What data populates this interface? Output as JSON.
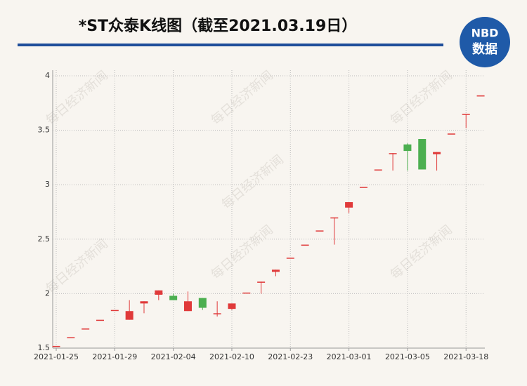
{
  "chart_data": {
    "type": "candlestick",
    "title": "*ST众泰K线图（截至2021.03.19日）",
    "logo": {
      "top": "NBD",
      "bottom": "数据"
    },
    "watermark": "每日经济新闻",
    "categories": [
      "2021-01-25",
      null,
      null,
      null,
      "2021-01-29",
      null,
      null,
      null,
      "2021-02-04",
      null,
      null,
      null,
      "2021-02-10",
      null,
      null,
      null,
      "2021-02-23",
      null,
      null,
      null,
      "2021-03-01",
      null,
      null,
      null,
      "2021-03-05",
      null,
      null,
      null,
      "2021-03-18",
      null
    ],
    "open": [
      1.52,
      1.6,
      1.68,
      1.76,
      1.85,
      1.76,
      1.91,
      1.99,
      1.98,
      1.84,
      1.96,
      1.81,
      1.86,
      2.01,
      2.1,
      2.2,
      2.33,
      2.45,
      2.58,
      2.7,
      2.79,
      2.98,
      3.14,
      3.29,
      3.37,
      3.42,
      3.28,
      3.47,
      3.65,
      3.82
    ],
    "high": [
      1.52,
      1.6,
      1.68,
      1.76,
      1.85,
      1.94,
      1.93,
      2.03,
      2.0,
      2.02,
      1.96,
      1.93,
      1.91,
      2.01,
      2.11,
      2.22,
      2.33,
      2.45,
      2.58,
      2.7,
      2.84,
      2.98,
      3.14,
      3.29,
      3.38,
      3.42,
      3.3,
      3.47,
      3.65,
      3.82
    ],
    "low": [
      1.52,
      1.6,
      1.68,
      1.76,
      1.85,
      1.76,
      1.82,
      1.94,
      1.94,
      1.84,
      1.85,
      1.79,
      1.85,
      2.01,
      2.0,
      2.16,
      2.33,
      2.45,
      2.58,
      2.45,
      2.74,
      2.98,
      3.14,
      3.13,
      3.13,
      3.14,
      3.13,
      3.47,
      3.52,
      3.82
    ],
    "close": [
      1.52,
      1.6,
      1.68,
      1.76,
      1.85,
      1.84,
      1.93,
      2.03,
      1.94,
      1.93,
      1.87,
      1.82,
      1.91,
      2.01,
      2.11,
      2.22,
      2.33,
      2.45,
      2.58,
      2.7,
      2.84,
      2.98,
      3.14,
      3.29,
      3.31,
      3.14,
      3.3,
      3.47,
      3.65,
      3.82
    ],
    "up_color": "#e03a3a",
    "down_color": "#4caf50",
    "ylim": [
      1.5,
      4
    ],
    "yticks": [
      1.5,
      2,
      2.5,
      3,
      3.5,
      4
    ],
    "grid": true
  }
}
